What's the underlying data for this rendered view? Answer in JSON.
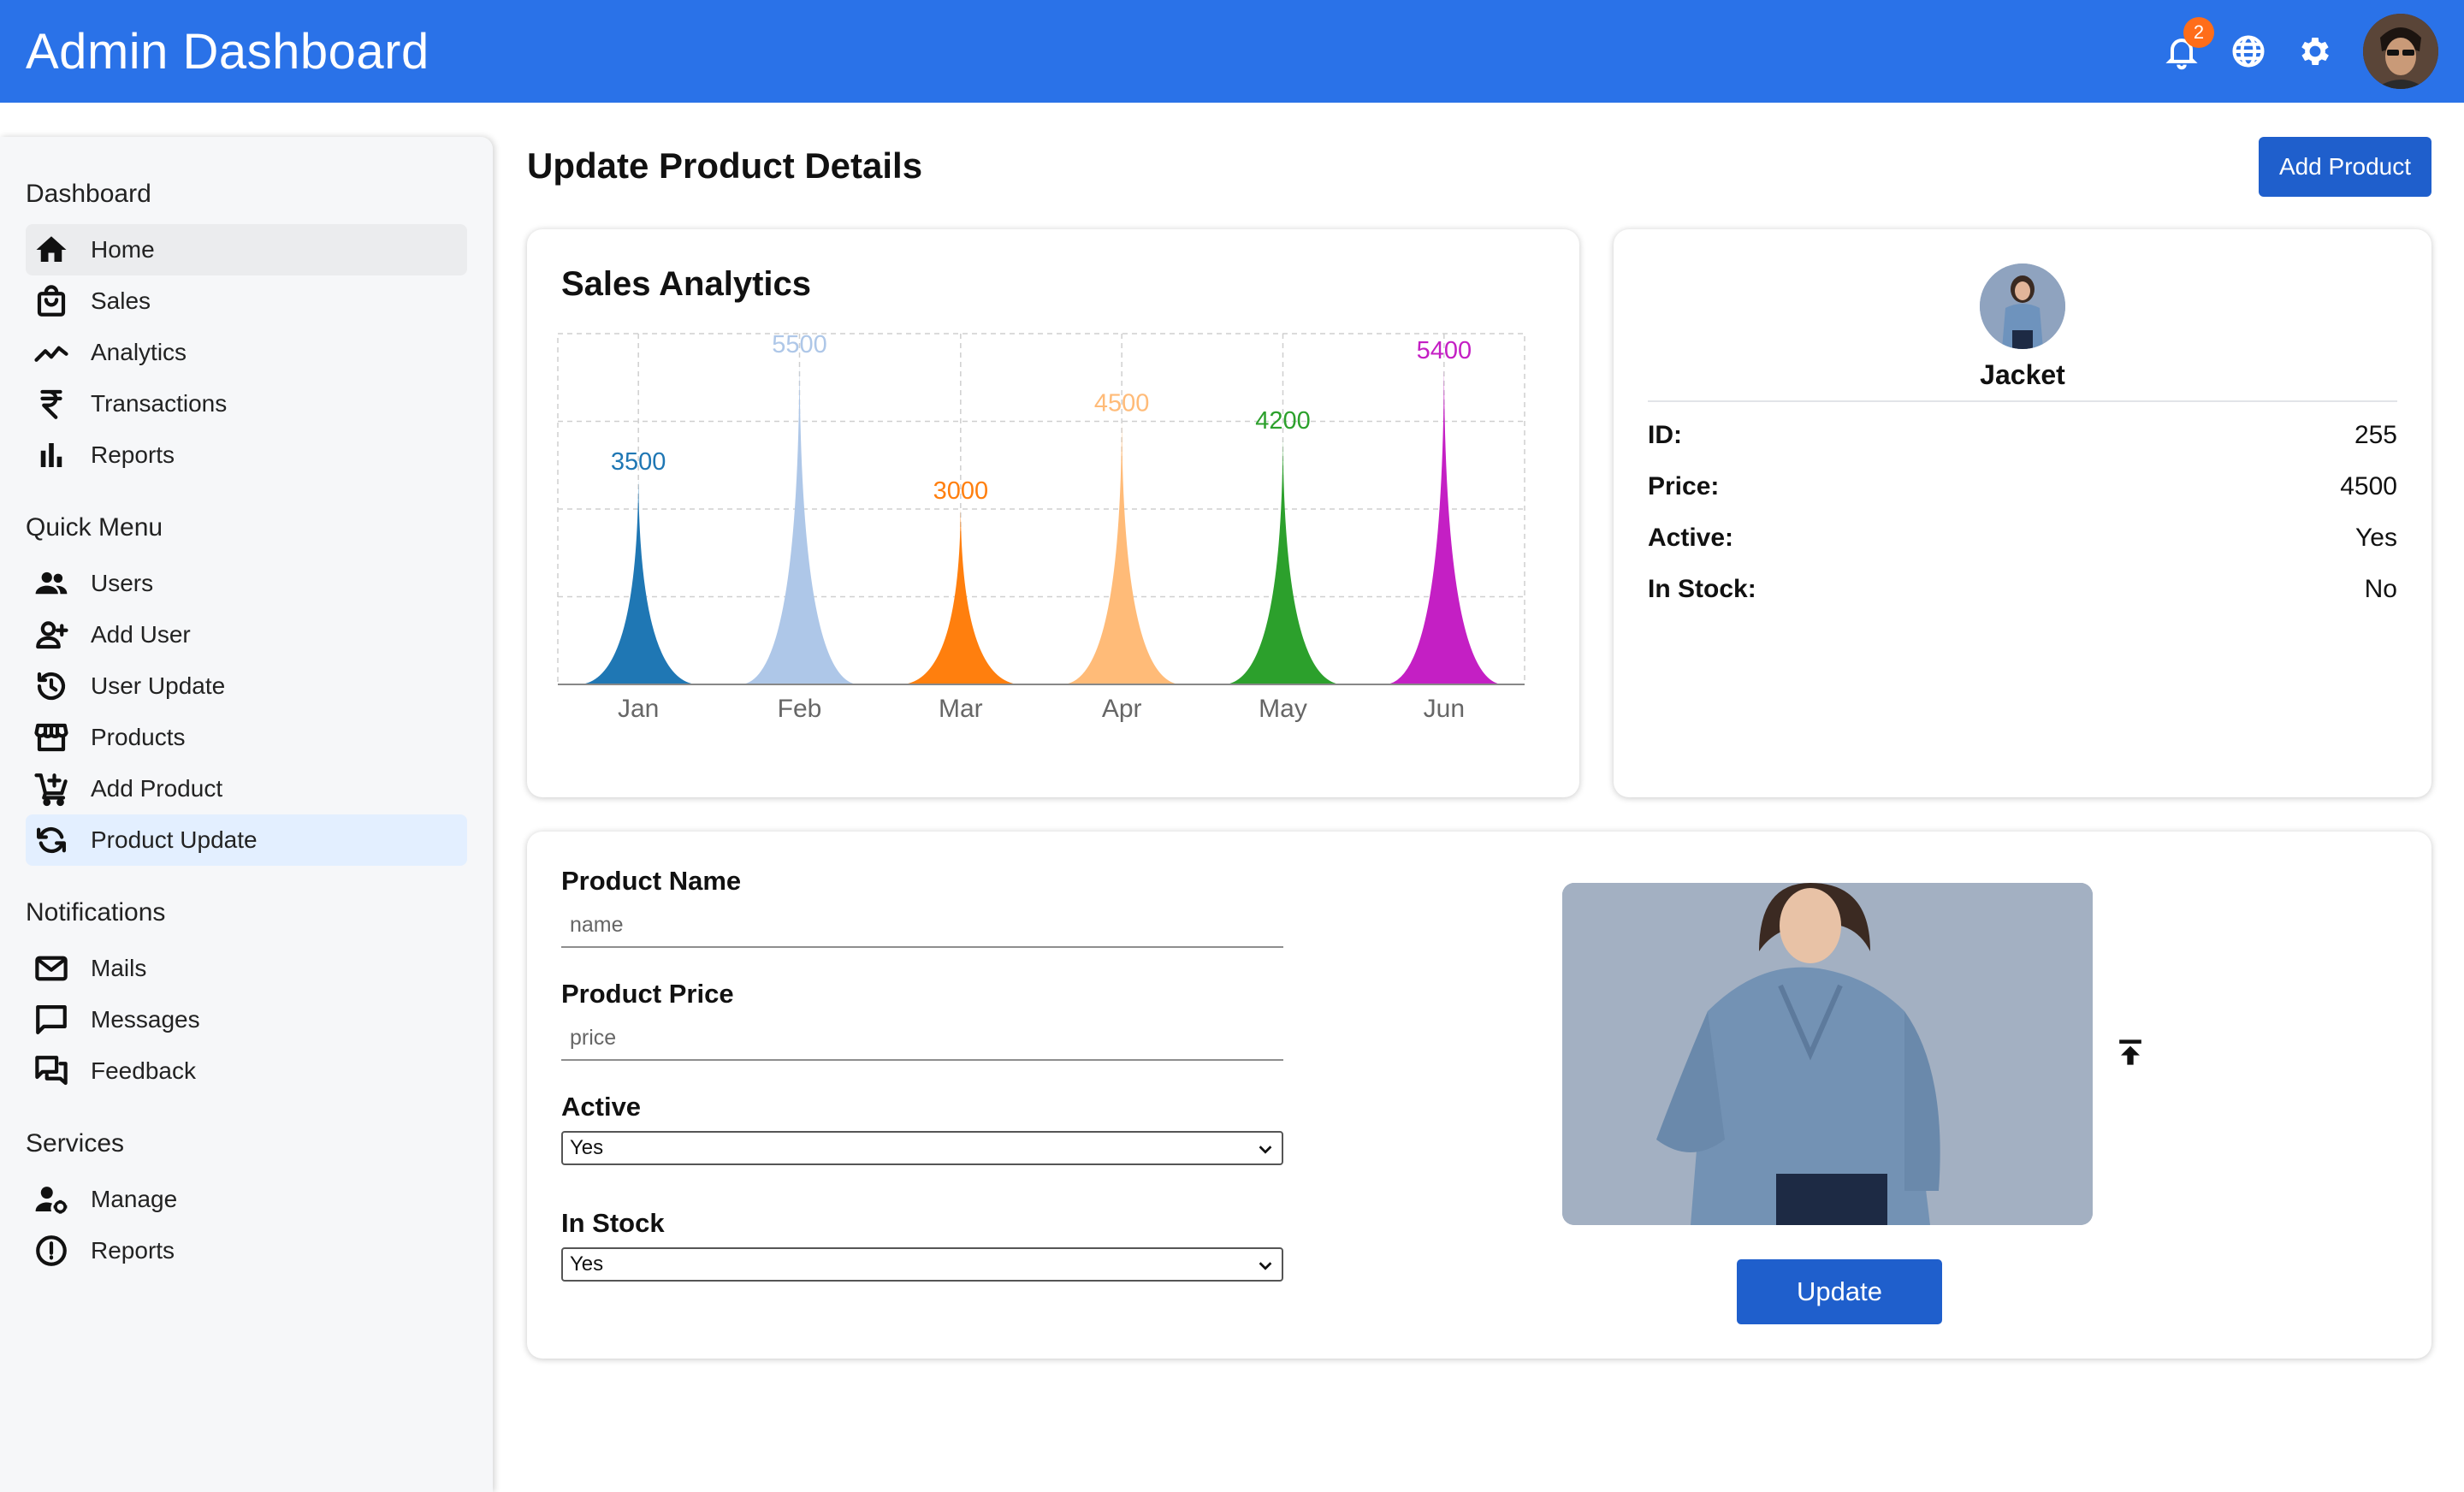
{
  "app": {
    "title": "Admin Dashboard"
  },
  "topbar": {
    "notification_count": "2",
    "icons": [
      "bell-icon",
      "globe-icon",
      "gear-icon",
      "avatar"
    ]
  },
  "sidebar": {
    "sections": [
      {
        "title": "Dashboard",
        "items": [
          {
            "label": "Home",
            "icon": "home-icon"
          },
          {
            "label": "Sales",
            "icon": "shopping-bag-icon"
          },
          {
            "label": "Analytics",
            "icon": "trending-line-icon"
          },
          {
            "label": "Transactions",
            "icon": "rupee-icon"
          },
          {
            "label": "Reports",
            "icon": "bar-chart-icon"
          }
        ]
      },
      {
        "title": "Quick Menu",
        "items": [
          {
            "label": "Users",
            "icon": "group-icon"
          },
          {
            "label": "Add User",
            "icon": "person-add-icon"
          },
          {
            "label": "User Update",
            "icon": "history-icon"
          },
          {
            "label": "Products",
            "icon": "storefront-icon"
          },
          {
            "label": "Add Product",
            "icon": "cart-add-icon"
          },
          {
            "label": "Product Update",
            "icon": "sync-icon"
          }
        ]
      },
      {
        "title": "Notifications",
        "items": [
          {
            "label": "Mails",
            "icon": "mail-icon"
          },
          {
            "label": "Messages",
            "icon": "chat-icon"
          },
          {
            "label": "Feedback",
            "icon": "forum-icon"
          }
        ]
      },
      {
        "title": "Services",
        "items": [
          {
            "label": "Manage",
            "icon": "manage-accounts-icon"
          },
          {
            "label": "Reports",
            "icon": "error-outline-icon"
          }
        ]
      }
    ],
    "hovered_item": "Home",
    "active_item": "Product Update"
  },
  "main": {
    "page_title": "Update Product Details",
    "add_product_label": "Add Product",
    "chart_title": "Sales Analytics"
  },
  "chart_data": {
    "type": "area",
    "title": "Sales Analytics",
    "categories": [
      "Jan",
      "Feb",
      "Mar",
      "Apr",
      "May",
      "Jun"
    ],
    "values": [
      3500,
      5500,
      3000,
      4500,
      4200,
      5400
    ],
    "colors": [
      "#1f77b4",
      "#aec7e8",
      "#ff7f0e",
      "#ffbb78",
      "#2ca02c",
      "#c41fc4"
    ],
    "ylim": [
      0,
      6000
    ],
    "grid": true
  },
  "product_info": {
    "name": "Jacket",
    "rows": [
      {
        "key": "ID:",
        "value": "255"
      },
      {
        "key": "Price:",
        "value": "4500"
      },
      {
        "key": "Active:",
        "value": "Yes"
      },
      {
        "key": "In Stock:",
        "value": "No"
      }
    ]
  },
  "form": {
    "name_label": "Product Name",
    "name_placeholder": "name",
    "price_label": "Product Price",
    "price_placeholder": "price",
    "active_label": "Active",
    "active_value": "Yes",
    "stock_label": "In Stock",
    "stock_value": "Yes",
    "update_label": "Update"
  }
}
